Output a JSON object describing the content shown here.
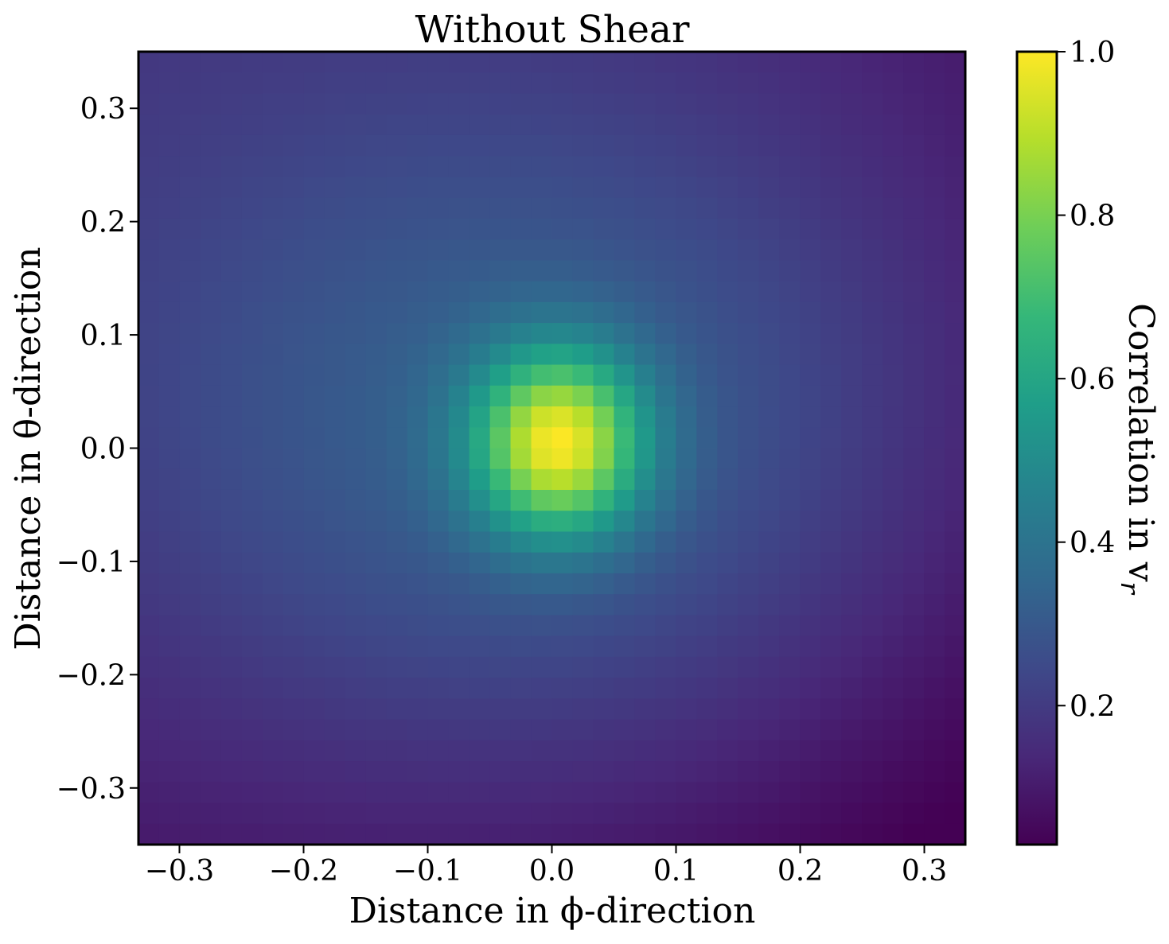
{
  "chart_data": {
    "type": "heatmap",
    "title": "Without Shear",
    "xlabel": "Distance in ϕ-direction",
    "ylabel": "Distance in θ-direction",
    "xlim": [
      -0.333,
      0.333
    ],
    "ylim": [
      -0.35,
      0.35
    ],
    "grid": false,
    "grid_cells": [
      40,
      38
    ],
    "x_ticks": [
      -0.3,
      -0.2,
      -0.1,
      0.0,
      0.1,
      0.2,
      0.3
    ],
    "x_tick_labels": [
      "−0.3",
      "−0.2",
      "−0.1",
      "0.0",
      "0.1",
      "0.2",
      "0.3"
    ],
    "y_ticks": [
      0.3,
      0.2,
      0.1,
      0.0,
      -0.1,
      -0.2,
      -0.3
    ],
    "y_tick_labels": [
      "0.3",
      "0.2",
      "0.1",
      "0.0",
      "−0.1",
      "−0.2",
      "−0.3"
    ],
    "field_model": {
      "peak_value": 1.0,
      "peak_center": [
        0.005,
        0.005
      ],
      "peak_sigma": [
        0.048,
        0.057
      ],
      "broad_amplitude": 0.27,
      "broad_sigma": [
        0.26,
        0.24
      ],
      "tilt_amplitude": 0.09,
      "offset": 0.06,
      "min_value": 0.03
    },
    "colorbar": {
      "label": "Correlation in v",
      "label_sub": "r",
      "range": [
        0.03,
        1.0
      ],
      "ticks": [
        0.2,
        0.4,
        0.6,
        0.8,
        1.0
      ],
      "tick_labels": [
        "0.2",
        "0.4",
        "0.6",
        "0.8",
        "1.0"
      ],
      "colormap": "viridis",
      "colors": [
        "#440154",
        "#482878",
        "#3e4989",
        "#31688e",
        "#26828e",
        "#1f9e89",
        "#35b779",
        "#6ece58",
        "#b5de2b",
        "#fde725"
      ]
    }
  }
}
